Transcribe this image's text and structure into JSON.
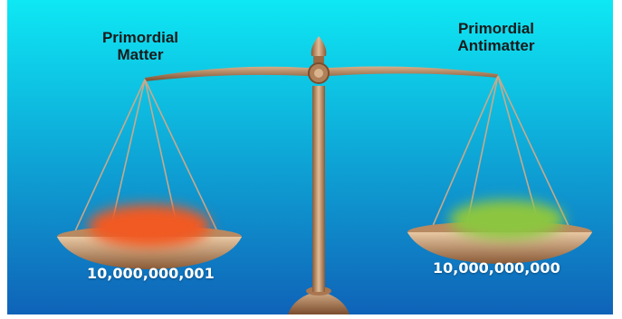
{
  "left_pan": {
    "title_line1": "Primordial",
    "title_line2": "Matter",
    "count": "10,000,000,001",
    "blob_color": "#f15a24"
  },
  "right_pan": {
    "title_line1": "Primordial",
    "title_line2": "Antimatter",
    "count": "10,000,000,000",
    "blob_color": "#8cc63f"
  },
  "colors": {
    "background_top": "#0ee8f4",
    "background_bottom": "#0f63b8",
    "bronze_light": "#d7b08a",
    "bronze_dark": "#8a5a36"
  }
}
